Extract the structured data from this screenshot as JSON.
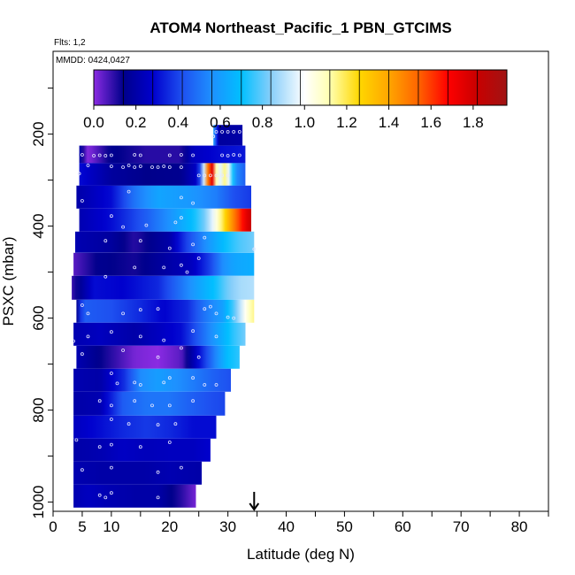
{
  "chart_data": {
    "type": "heatmap",
    "title": "ATOM4 Northeast_Pacific_1 PBN_GTCIMS",
    "flights_label": "Flts: 1,2",
    "date_label": "MMDD: 0424,0427",
    "xlabel": "Latitude (deg N)",
    "ylabel": "PSXC (mbar)",
    "xlim": [
      0,
      85
    ],
    "ylim": [
      1020,
      20
    ],
    "x_ticks": [
      0,
      5,
      10,
      20,
      30,
      40,
      50,
      60,
      70,
      80
    ],
    "y_ticks": [
      200,
      400,
      600,
      800,
      1000
    ],
    "color_scale": {
      "min": 0.0,
      "max": 1.96,
      "tick_values": [
        0.0,
        0.2,
        0.4,
        0.6,
        0.8,
        1.0,
        1.2,
        1.4,
        1.6,
        1.8
      ],
      "tick_labels": [
        "0.0",
        "0.2",
        "0.4",
        "0.6",
        "0.8",
        "1.0",
        "1.2",
        "1.4",
        "1.6",
        "1.8"
      ],
      "stops": [
        {
          "v": 0.0,
          "c": "#8a2be2"
        },
        {
          "v": 0.14,
          "c": "#00008b"
        },
        {
          "v": 0.28,
          "c": "#0000cd"
        },
        {
          "v": 0.42,
          "c": "#1e50f0"
        },
        {
          "v": 0.56,
          "c": "#1e90ff"
        },
        {
          "v": 0.7,
          "c": "#00bfff"
        },
        {
          "v": 0.84,
          "c": "#87cefa"
        },
        {
          "v": 1.0,
          "c": "#ffffff"
        },
        {
          "v": 1.12,
          "c": "#ffffb0"
        },
        {
          "v": 1.26,
          "c": "#ffd700"
        },
        {
          "v": 1.4,
          "c": "#ffa500"
        },
        {
          "v": 1.54,
          "c": "#ff6400"
        },
        {
          "v": 1.68,
          "c": "#ff0000"
        },
        {
          "v": 1.82,
          "c": "#c80000"
        },
        {
          "v": 1.96,
          "c": "#a01414"
        }
      ]
    },
    "marker": {
      "x": 34.5,
      "type": "arrow"
    },
    "layers": [
      {
        "p_top": 180,
        "p_bot": 225,
        "x_min": 27.5,
        "x_max": 32.5,
        "points": [
          [
            27.5,
            0.6
          ],
          [
            28.5,
            0.18
          ],
          [
            32.5,
            0.2
          ]
        ]
      },
      {
        "p_top": 225,
        "p_bot": 263,
        "x_min": 4.5,
        "x_max": 33.0,
        "points": [
          [
            4.5,
            0.2
          ],
          [
            6,
            0.0
          ],
          [
            10,
            0.15
          ],
          [
            16,
            0.1
          ],
          [
            22,
            0.1
          ],
          [
            24,
            0.25
          ],
          [
            29,
            0.3
          ],
          [
            33,
            0.32
          ]
        ]
      },
      {
        "p_top": 263,
        "p_bot": 312,
        "x_min": 4.5,
        "x_max": 33.0,
        "points": [
          [
            4.5,
            0.3
          ],
          [
            10,
            0.18
          ],
          [
            16,
            0.14
          ],
          [
            22,
            0.15
          ],
          [
            25,
            0.28
          ],
          [
            26.3,
            1.25
          ],
          [
            26.8,
            1.68
          ],
          [
            27.3,
            1.75
          ],
          [
            28.0,
            1.12
          ],
          [
            28.8,
            0.95
          ],
          [
            29.6,
            1.2
          ],
          [
            30.5,
            0.82
          ],
          [
            31.5,
            0.55
          ],
          [
            33,
            0.45
          ]
        ]
      },
      {
        "p_top": 312,
        "p_bot": 362,
        "x_min": 4.0,
        "x_max": 34.0,
        "points": [
          [
            4,
            0.2
          ],
          [
            10,
            0.3
          ],
          [
            14,
            0.5
          ],
          [
            18,
            0.62
          ],
          [
            24,
            0.58
          ],
          [
            28,
            0.52
          ],
          [
            31,
            0.42
          ],
          [
            34,
            0.38
          ]
        ]
      },
      {
        "p_top": 362,
        "p_bot": 412,
        "x_min": 4.5,
        "x_max": 34.0,
        "points": [
          [
            4.5,
            0.22
          ],
          [
            10,
            0.3
          ],
          [
            16,
            0.45
          ],
          [
            21,
            0.6
          ],
          [
            24,
            0.7
          ],
          [
            26,
            0.82
          ],
          [
            27.5,
            0.98
          ],
          [
            29,
            1.18
          ],
          [
            30.5,
            1.42
          ],
          [
            32,
            1.6
          ],
          [
            33.2,
            1.75
          ],
          [
            34,
            1.82
          ]
        ]
      },
      {
        "p_top": 412,
        "p_bot": 458,
        "x_min": 3.8,
        "x_max": 34.5,
        "points": [
          [
            3.8,
            0.22
          ],
          [
            10,
            0.18
          ],
          [
            14,
            0.1
          ],
          [
            20,
            0.2
          ],
          [
            23,
            0.4
          ],
          [
            27,
            0.6
          ],
          [
            30,
            0.72
          ],
          [
            32,
            0.78
          ],
          [
            34.5,
            0.82
          ]
        ]
      },
      {
        "p_top": 458,
        "p_bot": 508,
        "x_min": 3.5,
        "x_max": 34.5,
        "points": [
          [
            3.5,
            0.05
          ],
          [
            8,
            0.15
          ],
          [
            14,
            0.12
          ],
          [
            20,
            0.2
          ],
          [
            24,
            0.25
          ],
          [
            27,
            0.4
          ],
          [
            29,
            0.55
          ],
          [
            31,
            0.62
          ],
          [
            34.5,
            0.65
          ]
        ]
      },
      {
        "p_top": 508,
        "p_bot": 560,
        "x_min": 3.2,
        "x_max": 34.5,
        "points": [
          [
            3.2,
            0.08
          ],
          [
            7,
            0.3
          ],
          [
            12,
            0.28
          ],
          [
            18,
            0.35
          ],
          [
            22,
            0.5
          ],
          [
            25,
            0.62
          ],
          [
            28,
            0.72
          ],
          [
            30,
            0.82
          ],
          [
            32,
            0.88
          ],
          [
            34.5,
            0.9
          ]
        ]
      },
      {
        "p_top": 560,
        "p_bot": 610,
        "x_min": 4.0,
        "x_max": 34.5,
        "points": [
          [
            4,
            0.15
          ],
          [
            5,
            0.45
          ],
          [
            10,
            0.42
          ],
          [
            15,
            0.35
          ],
          [
            19,
            0.28
          ],
          [
            23,
            0.35
          ],
          [
            26,
            0.5
          ],
          [
            29,
            0.6
          ],
          [
            31,
            0.78
          ],
          [
            33.5,
            1.08
          ],
          [
            34.5,
            1.15
          ]
        ]
      },
      {
        "p_top": 610,
        "p_bot": 660,
        "x_min": 3.5,
        "x_max": 33.0,
        "points": [
          [
            3.5,
            0.22
          ],
          [
            8,
            0.25
          ],
          [
            14,
            0.2
          ],
          [
            18,
            0.25
          ],
          [
            22,
            0.3
          ],
          [
            25,
            0.45
          ],
          [
            28,
            0.6
          ],
          [
            31,
            0.75
          ],
          [
            33,
            0.82
          ]
        ]
      },
      {
        "p_top": 660,
        "p_bot": 710,
        "x_min": 4.0,
        "x_max": 32.0,
        "points": [
          [
            4,
            0.22
          ],
          [
            10,
            0.1
          ],
          [
            14,
            0.02
          ],
          [
            18,
            0.0
          ],
          [
            22,
            0.05
          ],
          [
            25,
            0.3
          ],
          [
            28,
            0.55
          ],
          [
            30,
            0.7
          ],
          [
            32,
            0.75
          ]
        ]
      },
      {
        "p_top": 710,
        "p_bot": 760,
        "x_min": 3.5,
        "x_max": 30.5,
        "points": [
          [
            3.5,
            0.22
          ],
          [
            8,
            0.2
          ],
          [
            12,
            0.35
          ],
          [
            15,
            0.55
          ],
          [
            18,
            0.6
          ],
          [
            22,
            0.55
          ],
          [
            25,
            0.5
          ],
          [
            28,
            0.45
          ],
          [
            30.5,
            0.42
          ]
        ]
      },
      {
        "p_top": 760,
        "p_bot": 812,
        "x_min": 3.5,
        "x_max": 29.5,
        "points": [
          [
            3.5,
            0.2
          ],
          [
            8,
            0.22
          ],
          [
            12,
            0.45
          ],
          [
            16,
            0.5
          ],
          [
            20,
            0.5
          ],
          [
            24,
            0.45
          ],
          [
            27,
            0.42
          ],
          [
            29.5,
            0.4
          ]
        ]
      },
      {
        "p_top": 812,
        "p_bot": 862,
        "x_min": 3.5,
        "x_max": 28.0,
        "points": [
          [
            3.5,
            0.25
          ],
          [
            8,
            0.3
          ],
          [
            12,
            0.35
          ],
          [
            16,
            0.38
          ],
          [
            20,
            0.35
          ],
          [
            24,
            0.3
          ],
          [
            28,
            0.3
          ]
        ]
      },
      {
        "p_top": 862,
        "p_bot": 912,
        "x_min": 3.5,
        "x_max": 27.0,
        "points": [
          [
            3.5,
            0.2
          ],
          [
            8,
            0.22
          ],
          [
            12,
            0.26
          ],
          [
            16,
            0.24
          ],
          [
            20,
            0.25
          ],
          [
            24,
            0.25
          ],
          [
            27,
            0.28
          ]
        ]
      },
      {
        "p_top": 912,
        "p_bot": 962,
        "x_min": 3.5,
        "x_max": 25.5,
        "points": [
          [
            3.5,
            0.22
          ],
          [
            8,
            0.2
          ],
          [
            12,
            0.2
          ],
          [
            16,
            0.2
          ],
          [
            20,
            0.22
          ],
          [
            25.5,
            0.2
          ]
        ]
      },
      {
        "p_top": 962,
        "p_bot": 1012,
        "x_min": 3.5,
        "x_max": 24.5,
        "points": [
          [
            3.5,
            0.22
          ],
          [
            6,
            0.25
          ],
          [
            10,
            0.22
          ],
          [
            14,
            0.2
          ],
          [
            18,
            0.2
          ],
          [
            22,
            0.1
          ],
          [
            24.5,
            0.02
          ]
        ]
      }
    ],
    "sample_points": [
      [
        28,
        195
      ],
      [
        29,
        195
      ],
      [
        30,
        195
      ],
      [
        31,
        195
      ],
      [
        32,
        195
      ],
      [
        27.5,
        205
      ],
      [
        5,
        245
      ],
      [
        7,
        247
      ],
      [
        8,
        246
      ],
      [
        9,
        247
      ],
      [
        10,
        246
      ],
      [
        14,
        245
      ],
      [
        15,
        246
      ],
      [
        20,
        246
      ],
      [
        22,
        245
      ],
      [
        24,
        246
      ],
      [
        29,
        246
      ],
      [
        30,
        247
      ],
      [
        31,
        245
      ],
      [
        32,
        246
      ],
      [
        6,
        268
      ],
      [
        10,
        270
      ],
      [
        12,
        272
      ],
      [
        13,
        268
      ],
      [
        14,
        272
      ],
      [
        15,
        270
      ],
      [
        17,
        272
      ],
      [
        18,
        272
      ],
      [
        19,
        270
      ],
      [
        20,
        272
      ],
      [
        22,
        272
      ],
      [
        4.5,
        286
      ],
      [
        25,
        290
      ],
      [
        26,
        290
      ],
      [
        27,
        290
      ],
      [
        28,
        290
      ],
      [
        29,
        290
      ],
      [
        30,
        290
      ],
      [
        5,
        345
      ],
      [
        13,
        325
      ],
      [
        22,
        338
      ],
      [
        24,
        350
      ],
      [
        10,
        378
      ],
      [
        12,
        402
      ],
      [
        16,
        398
      ],
      [
        21,
        392
      ],
      [
        22,
        382
      ],
      [
        9,
        432
      ],
      [
        15,
        432
      ],
      [
        20,
        448
      ],
      [
        24,
        440
      ],
      [
        26,
        425
      ],
      [
        34.5,
        450
      ],
      [
        9,
        510
      ],
      [
        14,
        490
      ],
      [
        19,
        490
      ],
      [
        22,
        485
      ],
      [
        23,
        500
      ],
      [
        25,
        470
      ],
      [
        5,
        572
      ],
      [
        6,
        590
      ],
      [
        12,
        590
      ],
      [
        15,
        582
      ],
      [
        18,
        580
      ],
      [
        26,
        580
      ],
      [
        27,
        575
      ],
      [
        28,
        590
      ],
      [
        30,
        598
      ],
      [
        31,
        600
      ],
      [
        3.5,
        650
      ],
      [
        6,
        640
      ],
      [
        10,
        630
      ],
      [
        15,
        640
      ],
      [
        19,
        648
      ],
      [
        24,
        628
      ],
      [
        28,
        640
      ],
      [
        5,
        678
      ],
      [
        12,
        670
      ],
      [
        18,
        685
      ],
      [
        22,
        665
      ],
      [
        25,
        685
      ],
      [
        10,
        720
      ],
      [
        11,
        742
      ],
      [
        14,
        740
      ],
      [
        15,
        745
      ],
      [
        19,
        740
      ],
      [
        20,
        730
      ],
      [
        24,
        730
      ],
      [
        26,
        745
      ],
      [
        28,
        745
      ],
      [
        8,
        780
      ],
      [
        10,
        790
      ],
      [
        14,
        780
      ],
      [
        17,
        790
      ],
      [
        20,
        790
      ],
      [
        24,
        780
      ],
      [
        10,
        820
      ],
      [
        13,
        830
      ],
      [
        18,
        832
      ],
      [
        21,
        830
      ],
      [
        4,
        865
      ],
      [
        8,
        880
      ],
      [
        10,
        875
      ],
      [
        15,
        880
      ],
      [
        20,
        870
      ],
      [
        5,
        930
      ],
      [
        10,
        925
      ],
      [
        18,
        935
      ],
      [
        22,
        925
      ],
      [
        8,
        985
      ],
      [
        9,
        990
      ],
      [
        10,
        980
      ],
      [
        18,
        990
      ]
    ]
  }
}
